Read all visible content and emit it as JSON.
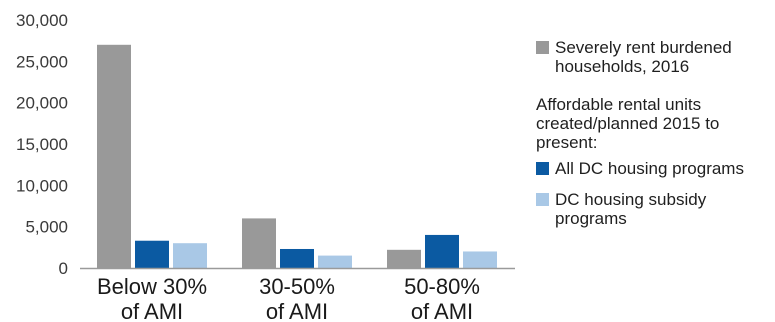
{
  "chart_data": {
    "type": "bar",
    "categories": [
      [
        "Below 30%",
        "of AMI"
      ],
      [
        "30-50%",
        "of AMI"
      ],
      [
        "50-80%",
        "of AMI"
      ]
    ],
    "series": [
      {
        "name": "Severely rent burdened households, 2016",
        "color": "#999999",
        "values": [
          27000,
          6000,
          2200
        ]
      },
      {
        "name": "All DC housing programs",
        "color": "#0b5aa2",
        "values": [
          3300,
          2300,
          4000
        ]
      },
      {
        "name": "DC housing subsidy programs",
        "color": "#a9c8e6",
        "values": [
          3000,
          1500,
          2000
        ]
      }
    ],
    "ylim": [
      0,
      30000
    ],
    "yticks": [
      "30,000",
      "25,000",
      "20,000",
      "15,000",
      "10,000",
      "5,000",
      "0"
    ],
    "ytick_values": [
      30000,
      25000,
      20000,
      15000,
      10000,
      5000,
      0
    ],
    "grid": false,
    "legend": {
      "placement": "right",
      "heading": "Affordable rental units created/planned 2015 to present:",
      "items": [
        {
          "label": "Severely rent burdened households, 2016",
          "color": "#999999"
        },
        {
          "label": "All DC housing programs",
          "color": "#0b5aa2"
        },
        {
          "label": "DC housing subsidy programs",
          "color": "#a9c8e6"
        }
      ]
    }
  }
}
